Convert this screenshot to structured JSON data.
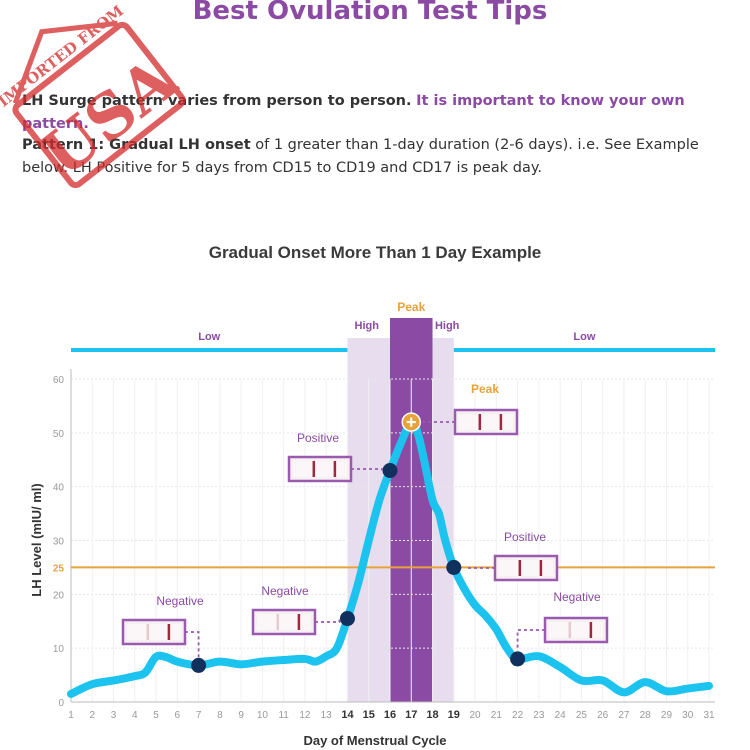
{
  "page": {
    "title": "Best Ovulation Test Tips",
    "para1_bold": "LH Surge pattern varies from person to person.",
    "para1_highlight": "It is important to know your own pattern.",
    "para2_bold": "Pattern 1: Gradual LH onset",
    "para2_text": "of 1 greater than 1-day duration (2-6 days). i.e. See Example below. LH Positive for 5 days from CD15 to CD19 and CD17 is peak day.",
    "stamp_text": "IMPORTED FROM USA"
  },
  "colors": {
    "accent": "#8b4aa3",
    "curve": "#1cc3ee",
    "threshold": "#e8a23a",
    "dot": "#10305e",
    "band": "#e7ddef",
    "peak_band": "#8b4aa3",
    "stamp": "#d42a2a"
  },
  "chart_data": {
    "type": "line",
    "title": "Gradual Onset More Than 1 Day Example",
    "xlabel": "Day of Menstrual Cycle",
    "ylabel": "LH Level (mIU/ ml)",
    "xlim": [
      1,
      31
    ],
    "ylim": [
      0,
      60
    ],
    "yticks": [
      0,
      10,
      20,
      25,
      30,
      40,
      50,
      60
    ],
    "threshold": {
      "value": 25,
      "label": "25"
    },
    "bands": [
      {
        "label": "Low",
        "from": 1,
        "to": 14
      },
      {
        "label": "High",
        "from": 14,
        "to": 16
      },
      {
        "label": "Peak",
        "from": 16,
        "to": 18
      },
      {
        "label": "High",
        "from": 18,
        "to": 19
      },
      {
        "label": "Low",
        "from": 19,
        "to": 31
      }
    ],
    "series": [
      {
        "x": [
          1,
          2,
          3,
          4,
          4.5,
          5,
          5.5,
          6,
          7,
          8,
          9,
          10,
          11,
          12,
          12.5,
          13,
          13.5,
          14,
          14.5,
          15,
          15.5,
          16,
          16.5,
          17,
          17.3,
          17.6,
          18,
          18.3,
          18.6,
          19,
          19.5,
          20,
          20.5,
          21,
          21.5,
          22,
          23,
          24,
          25,
          26,
          27,
          28,
          29,
          30,
          31
        ],
        "y": [
          1.5,
          3.3,
          4.0,
          4.8,
          5.5,
          8.4,
          8.3,
          7.5,
          6.8,
          7.5,
          7.0,
          7.5,
          7.8,
          8.0,
          7.5,
          8.5,
          10.0,
          15.5,
          22.0,
          30.0,
          37.5,
          43.0,
          48.0,
          52.0,
          50.0,
          45.0,
          37.5,
          35.0,
          30.0,
          25.0,
          21.0,
          18.0,
          16.0,
          13.5,
          10.0,
          8.0,
          8.5,
          6.5,
          4.0,
          4.0,
          1.8,
          3.7,
          2.0,
          2.5,
          3.0
        ]
      }
    ],
    "markers": [
      7,
      14,
      16,
      19,
      22
    ],
    "peak_marker": 17,
    "x_tick_labels": [
      "1",
      "2",
      "3",
      "4",
      "5",
      "6",
      "7",
      "8",
      "9",
      "10",
      "11",
      "12",
      "13",
      "14",
      "15",
      "16",
      "17",
      "18",
      "19",
      "20",
      "21",
      "22",
      "23",
      "24",
      "25",
      "26",
      "27",
      "28",
      "29",
      "30",
      "31"
    ],
    "bold_ticks": [
      "14",
      "15",
      "16",
      "17",
      "18",
      "19"
    ],
    "annotations": [
      {
        "label": "Negative",
        "day": 7,
        "test": "negative"
      },
      {
        "label": "Negative",
        "day": 14,
        "test": "negative"
      },
      {
        "label": "Positive",
        "day": 16,
        "test": "positive"
      },
      {
        "label": "Peak",
        "day": 17,
        "test": "peak"
      },
      {
        "label": "Positive",
        "day": 19,
        "test": "positive"
      },
      {
        "label": "Negative",
        "day": 22,
        "test": "negative"
      }
    ]
  }
}
